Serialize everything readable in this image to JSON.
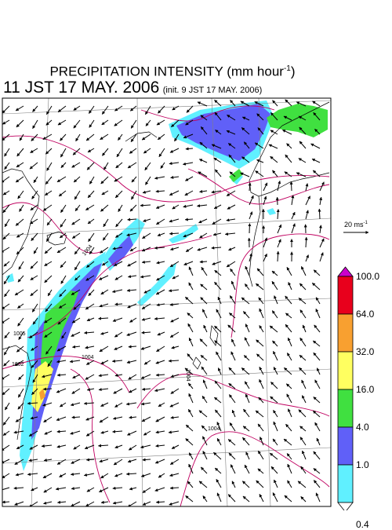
{
  "title": {
    "main": "PRECIPITATION INTENSITY (mm hour",
    "exp": "-1",
    "close": ")"
  },
  "subtitle": {
    "time": "11 JST 17 MAY. 2006",
    "init": "(init. 9 JST 17 MAY. 2006)"
  },
  "scale": {
    "value": "20 ms",
    "exp": "-1"
  },
  "colorbar": [
    {
      "label": "100.0",
      "color": "#cc00cc"
    },
    {
      "label": "64.0",
      "color": "#e8001c"
    },
    {
      "label": "32.0",
      "color": "#f8a030"
    },
    {
      "label": "16.0",
      "color": "#ffff60"
    },
    {
      "label": "4.0",
      "color": "#40e040"
    },
    {
      "label": "1.0",
      "color": "#6060f8"
    },
    {
      "label": "0.4",
      "color": "#60f0ff"
    }
  ],
  "isobar_labels": [
    "1004",
    "1005",
    "1002",
    "1004",
    "1004",
    "1004"
  ],
  "colors": {
    "isobar": "#c00060",
    "coast": "#000000",
    "grid": "#808080"
  }
}
